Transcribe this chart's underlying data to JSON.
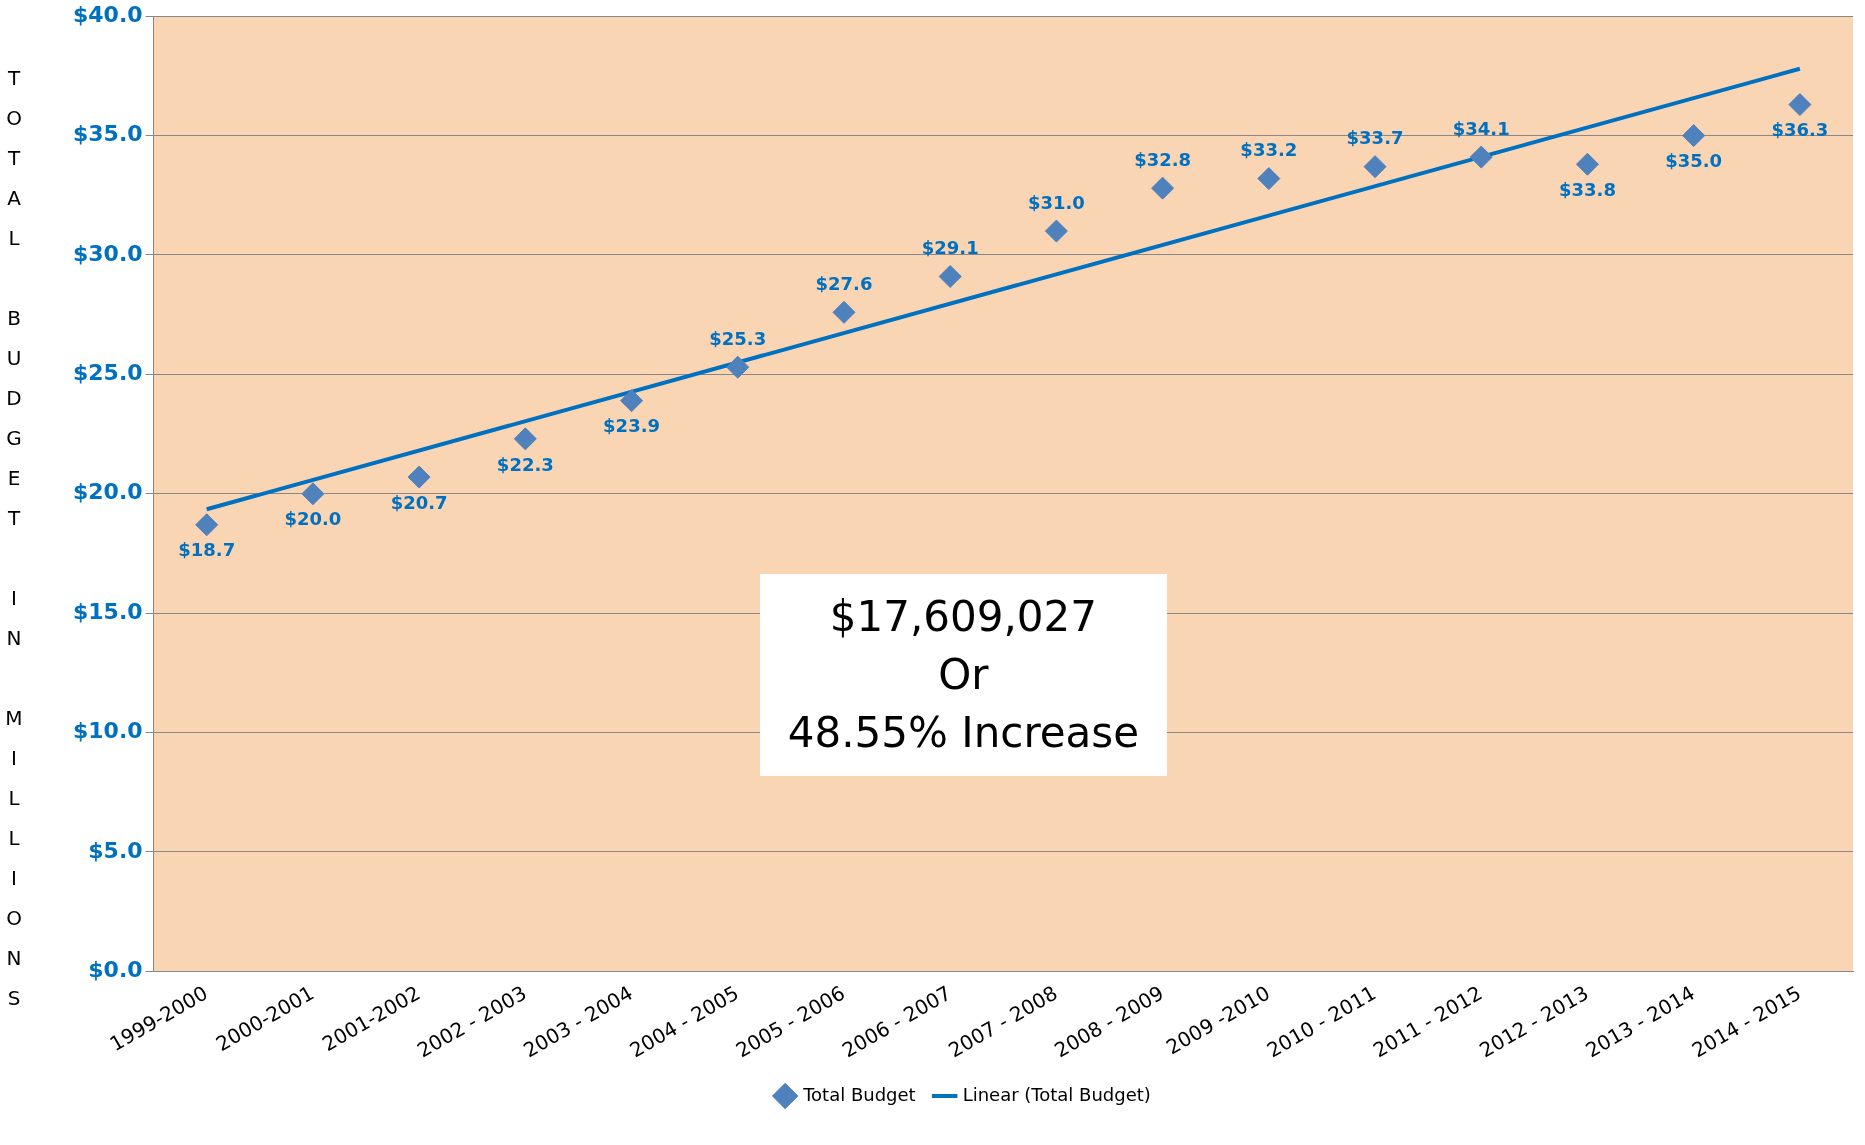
{
  "chart_data": {
    "type": "scatter",
    "ylabel": "TOTAL BUDGET IN MILLIONS",
    "categories": [
      "1999-2000",
      "2000-2001",
      "2001-2002",
      "2002 - 2003",
      "2003 - 2004",
      "2004 - 2005",
      "2005 - 2006",
      "2006 - 2007",
      "2007 - 2008",
      "2008 - 2009",
      "2009 -2010",
      "2010 - 2011",
      "2011 - 2012",
      "2012 - 2013",
      "2013 - 2014",
      "2014 - 2015"
    ],
    "series": [
      {
        "name": "Total Budget",
        "type": "scatter",
        "marker": "diamond",
        "color": "#4f81bd",
        "values": [
          18.7,
          20.0,
          20.7,
          22.3,
          23.9,
          25.3,
          27.6,
          29.1,
          31.0,
          32.8,
          33.2,
          33.7,
          34.1,
          33.8,
          35.0,
          36.3
        ],
        "value_labels": [
          "$18.7",
          "$20.0",
          "$20.7",
          "$22.3",
          "$23.9",
          "$25.3",
          "$27.6",
          "$29.1",
          "$31.0",
          "$32.8",
          "$33.2",
          "$33.7",
          "$34.1",
          "$33.8",
          "$35.0",
          "$36.3"
        ]
      },
      {
        "name": "Linear (Total Budget)",
        "type": "line",
        "marker": "none",
        "color": "#0070c0",
        "x": [
          "1999-2000",
          "2014 - 2015"
        ],
        "values": [
          19.35,
          37.8
        ]
      }
    ],
    "ylim": [
      0,
      40
    ],
    "yticks": [
      {
        "value": 0,
        "label": "$0.0"
      },
      {
        "value": 5,
        "label": "$5.0"
      },
      {
        "value": 10,
        "label": "$10.0"
      },
      {
        "value": 15,
        "label": "$15.0"
      },
      {
        "value": 20,
        "label": "$20.0"
      },
      {
        "value": 25,
        "label": "$25.0"
      },
      {
        "value": 30,
        "label": "$30.0"
      },
      {
        "value": 35,
        "label": "$35.0"
      },
      {
        "value": 40,
        "label": "$40.0"
      }
    ],
    "grid": "y",
    "legend": "bottom",
    "line_style": "solid",
    "annotations": [
      "$17,609,027\nOr\n48.55% Increase"
    ]
  }
}
